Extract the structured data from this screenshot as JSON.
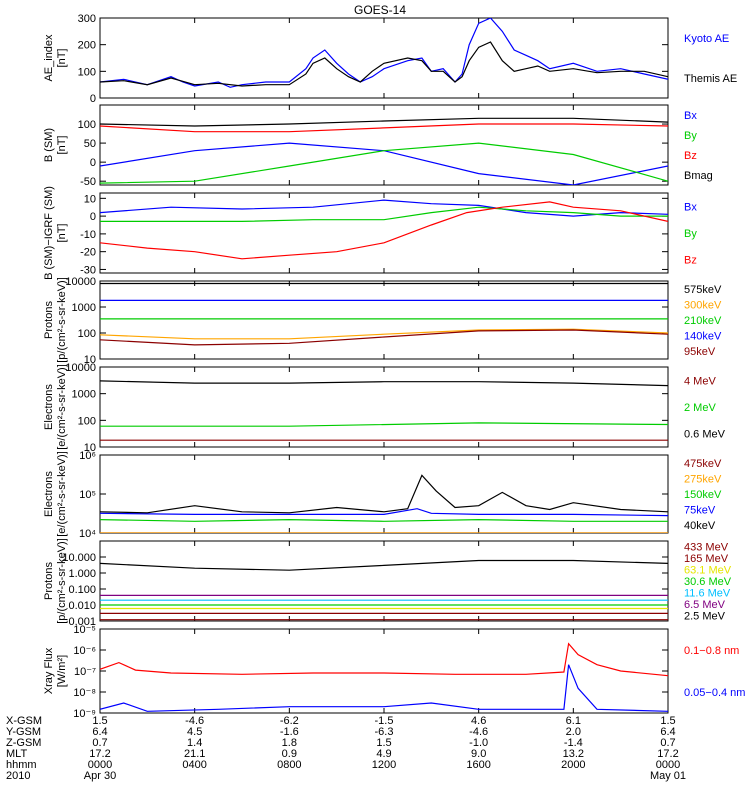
{
  "title": "GOES-14",
  "colors": {
    "blue": "#0000ff",
    "black": "#000000",
    "red": "#ff0000",
    "green": "#00cc00",
    "darkred": "#8b0000",
    "orange": "#ffa500",
    "yellow": "#e6e600",
    "cyan": "#00bfff",
    "purple": "#800080",
    "bg": "#ffffff"
  },
  "chart_data": [
    {
      "type": "line",
      "id": "ae",
      "ylabel": [
        "AE_index",
        "[nT]"
      ],
      "yscale": "linear",
      "ylim": [
        0,
        300
      ],
      "ticks": [
        0,
        100,
        200,
        300
      ],
      "tick_labels": [
        "0",
        "100",
        "200",
        "300"
      ],
      "series": [
        {
          "name": "Kyoto AE",
          "color": "blue",
          "x": [
            0,
            1,
            2,
            3,
            3.5,
            4,
            5,
            5.5,
            6,
            7,
            8,
            8.7,
            9,
            9.5,
            10,
            10.5,
            11,
            11.5,
            12,
            13,
            13.6,
            14,
            14.5,
            15,
            15.3,
            15.6,
            16,
            16.5,
            17,
            17.5,
            18,
            18.5,
            19,
            20,
            21,
            22,
            23,
            24
          ],
          "y": [
            60,
            70,
            50,
            80,
            60,
            45,
            60,
            40,
            50,
            60,
            60,
            110,
            150,
            180,
            130,
            90,
            60,
            80,
            110,
            140,
            150,
            100,
            110,
            60,
            90,
            200,
            280,
            310,
            250,
            180,
            160,
            140,
            110,
            130,
            100,
            110,
            90,
            70
          ]
        },
        {
          "name": "Themis AE",
          "color": "black",
          "x": [
            0,
            1,
            2,
            3,
            4,
            5,
            6,
            7,
            8,
            8.7,
            9,
            9.5,
            10,
            10.5,
            11,
            11.5,
            12,
            13,
            13.6,
            14,
            14.5,
            15,
            15.3,
            15.6,
            16,
            16.5,
            17,
            17.5,
            18,
            18.5,
            19,
            20,
            21,
            22,
            23,
            24
          ],
          "y": [
            60,
            65,
            50,
            75,
            50,
            55,
            45,
            50,
            50,
            90,
            130,
            150,
            110,
            80,
            60,
            100,
            130,
            150,
            140,
            100,
            100,
            60,
            80,
            140,
            190,
            210,
            140,
            100,
            110,
            120,
            100,
            110,
            95,
            100,
            100,
            80
          ]
        }
      ]
    },
    {
      "type": "line",
      "id": "bsm",
      "ylabel": [
        "B (SM)",
        "[nT]"
      ],
      "yscale": "linear",
      "ylim": [
        -60,
        150
      ],
      "ticks": [
        -50,
        0,
        50,
        100
      ],
      "tick_labels": [
        "-50",
        "0",
        "50",
        "100"
      ],
      "series": [
        {
          "name": "Bx",
          "color": "blue",
          "x": [
            0,
            4,
            8,
            12,
            16,
            20,
            24
          ],
          "y": [
            -10,
            30,
            50,
            30,
            -30,
            -60,
            -10
          ]
        },
        {
          "name": "By",
          "color": "green",
          "x": [
            0,
            4,
            8,
            12,
            16,
            20,
            24
          ],
          "y": [
            -55,
            -50,
            -10,
            30,
            50,
            20,
            -50
          ]
        },
        {
          "name": "Bz",
          "color": "red",
          "x": [
            0,
            4,
            8,
            12,
            16,
            20,
            24
          ],
          "y": [
            95,
            80,
            80,
            90,
            100,
            100,
            95
          ]
        },
        {
          "name": "Bmag",
          "color": "black",
          "x": [
            0,
            4,
            8,
            12,
            16,
            20,
            24
          ],
          "y": [
            100,
            95,
            100,
            108,
            115,
            115,
            105
          ]
        }
      ]
    },
    {
      "type": "line",
      "id": "bigrf",
      "ylabel": [
        "B (SM)−IGRF (SM)",
        "[nT]"
      ],
      "yscale": "linear",
      "ylim": [
        -32,
        13
      ],
      "ticks": [
        -30,
        -20,
        -10,
        0,
        10
      ],
      "tick_labels": [
        "-30",
        "-20",
        "-10",
        "0",
        "10"
      ],
      "series": [
        {
          "name": "Bx",
          "color": "blue",
          "x": [
            0,
            3,
            6,
            9,
            12,
            14,
            16,
            18,
            20,
            22,
            24
          ],
          "y": [
            2,
            5,
            4,
            5,
            9,
            7,
            6,
            2,
            0,
            2,
            1
          ]
        },
        {
          "name": "By",
          "color": "green",
          "x": [
            0,
            3,
            6,
            9,
            12,
            14,
            16,
            18,
            20,
            22,
            24
          ],
          "y": [
            -3,
            -3,
            -3,
            -2,
            -2,
            2,
            5,
            3,
            2,
            0,
            0
          ]
        },
        {
          "name": "Bz",
          "color": "red",
          "x": [
            0,
            2,
            4,
            6,
            8,
            10,
            12,
            14,
            15.5,
            17,
            19,
            20,
            22,
            24
          ],
          "y": [
            -15,
            -18,
            -20,
            -24,
            -22,
            -20,
            -15,
            -5,
            2,
            5,
            8,
            5,
            3,
            -3
          ]
        }
      ]
    },
    {
      "type": "line",
      "id": "protons1",
      "ylabel": [
        "Protons",
        "[p/(cm²-s-sr-keV)]"
      ],
      "yscale": "log",
      "ylim": [
        10,
        10000
      ],
      "ticks": [
        10,
        100,
        1000,
        10000
      ],
      "tick_labels": [
        "10",
        "100",
        "1000",
        "10000"
      ],
      "series": [
        {
          "name": "575keV",
          "color": "black",
          "x": [
            0,
            24
          ],
          "y": [
            8000,
            8000
          ]
        },
        {
          "name": "300keV",
          "color": "orange",
          "x": [
            0,
            4,
            8,
            12,
            16,
            20,
            24
          ],
          "y": [
            85,
            60,
            60,
            90,
            130,
            140,
            100
          ]
        },
        {
          "name": "210keV",
          "color": "green",
          "x": [
            0,
            24
          ],
          "y": [
            350,
            350
          ]
        },
        {
          "name": "140keV",
          "color": "blue",
          "x": [
            0,
            24
          ],
          "y": [
            1800,
            1800
          ]
        },
        {
          "name": "95keV",
          "color": "darkred",
          "x": [
            0,
            4,
            8,
            12,
            16,
            20,
            24
          ],
          "y": [
            55,
            35,
            40,
            70,
            120,
            130,
            90
          ]
        }
      ]
    },
    {
      "type": "line",
      "id": "electrons1",
      "ylabel": [
        "Electrons",
        "[e/(cm²-s-sr-keV)]"
      ],
      "yscale": "log",
      "ylim": [
        10,
        10000
      ],
      "ticks": [
        10,
        100,
        1000,
        10000
      ],
      "tick_labels": [
        "10",
        "100",
        "1000",
        "10000"
      ],
      "series": [
        {
          "name": "4 MeV",
          "color": "darkred",
          "x": [
            0,
            24
          ],
          "y": [
            18,
            18
          ]
        },
        {
          "name": "2 MeV",
          "color": "green",
          "x": [
            0,
            8,
            16,
            24
          ],
          "y": [
            60,
            60,
            80,
            70
          ]
        },
        {
          "name": "0.6 MeV",
          "color": "black",
          "x": [
            0,
            4,
            8,
            12,
            16,
            20,
            24
          ],
          "y": [
            3000,
            2500,
            2500,
            2800,
            2800,
            2500,
            2000
          ]
        }
      ]
    },
    {
      "type": "line",
      "id": "electrons2",
      "ylabel": [
        "Electrons",
        "[e/(cm²-s-sr-keV)]"
      ],
      "yscale": "log",
      "ylim": [
        10000,
        1000000
      ],
      "ticks": [
        10000,
        100000,
        1000000
      ],
      "tick_labels": [
        "10⁴",
        "10⁵",
        "10⁶"
      ],
      "series": [
        {
          "name": "475keV",
          "color": "darkred",
          "x": [
            0,
            24
          ],
          "y": [
            8000,
            8000
          ]
        },
        {
          "name": "275keV",
          "color": "orange",
          "x": [
            0,
            24
          ],
          "y": [
            8000,
            8000
          ]
        },
        {
          "name": "150keV",
          "color": "green",
          "x": [
            0,
            4,
            8,
            12,
            16,
            20,
            24
          ],
          "y": [
            22000,
            20000,
            22000,
            20000,
            22000,
            20000,
            20000
          ]
        },
        {
          "name": "75keV",
          "color": "blue",
          "x": [
            0,
            4,
            8,
            12,
            13.4,
            14,
            16,
            20,
            24
          ],
          "y": [
            32000,
            30000,
            30000,
            30000,
            42000,
            32000,
            30000,
            30000,
            28000
          ]
        },
        {
          "name": "40keV",
          "color": "black",
          "x": [
            0,
            2,
            4,
            6,
            8,
            10,
            12,
            13,
            13.6,
            14.2,
            15,
            16,
            17,
            18,
            19,
            20,
            22,
            24
          ],
          "y": [
            35000,
            33000,
            50000,
            35000,
            33000,
            45000,
            35000,
            42000,
            300000,
            120000,
            45000,
            50000,
            110000,
            50000,
            40000,
            60000,
            40000,
            35000
          ]
        }
      ]
    },
    {
      "type": "line",
      "id": "protons2",
      "ylabel": [
        "Protons",
        "[p/(cm²-s-sr-keV)]"
      ],
      "yscale": "log",
      "ylim": [
        0.001,
        100
      ],
      "ticks": [
        0.001,
        0.01,
        0.1,
        1,
        10
      ],
      "tick_labels": [
        "0.001",
        "0.010",
        "0.100",
        "1.000",
        "10.000"
      ],
      "series": [
        {
          "name": "433 MeV",
          "color": "darkred",
          "x": [
            0,
            24
          ],
          "y": [
            0.0012,
            0.0012
          ]
        },
        {
          "name": "165 MeV",
          "color": "darkred",
          "x": [
            0,
            24
          ],
          "y": [
            0.003,
            0.003
          ]
        },
        {
          "name": "63.1 MeV",
          "color": "yellow",
          "x": [
            0,
            24
          ],
          "y": [
            0.006,
            0.006
          ]
        },
        {
          "name": "30.6 MeV",
          "color": "green",
          "x": [
            0,
            24
          ],
          "y": [
            0.01,
            0.01
          ]
        },
        {
          "name": "11.6 MeV",
          "color": "cyan",
          "x": [
            0,
            24
          ],
          "y": [
            0.02,
            0.02
          ]
        },
        {
          "name": "6.5 MeV",
          "color": "purple",
          "x": [
            0,
            24
          ],
          "y": [
            0.04,
            0.04
          ]
        },
        {
          "name": "2.5 MeV",
          "color": "black",
          "x": [
            0,
            4,
            8,
            12,
            16,
            20,
            24
          ],
          "y": [
            4,
            2,
            1.5,
            3,
            6,
            6,
            4
          ]
        }
      ]
    },
    {
      "type": "line",
      "id": "xray",
      "ylabel": [
        "Xray Flux",
        "[W/m²]"
      ],
      "yscale": "log",
      "ylim": [
        1e-09,
        1e-05
      ],
      "ticks": [
        1e-09,
        1e-08,
        1e-07,
        1e-06,
        1e-05
      ],
      "tick_labels": [
        "10⁻⁹",
        "10⁻⁸",
        "10⁻⁷",
        "10⁻⁶",
        "10⁻⁵"
      ],
      "series": [
        {
          "name": "0.1−0.8 nm",
          "color": "red",
          "x": [
            0,
            0.8,
            1.5,
            3,
            6,
            9,
            12,
            15,
            18,
            19.6,
            19.8,
            20.2,
            21,
            22,
            24
          ],
          "y": [
            1.2e-07,
            2.5e-07,
            1.1e-07,
            8e-08,
            7e-08,
            8e-08,
            8e-08,
            7e-08,
            7e-08,
            9e-08,
            2e-06,
            6e-07,
            2e-07,
            1e-07,
            6e-08
          ]
        },
        {
          "name": "0.05−0.4 nm",
          "color": "blue",
          "x": [
            0,
            1,
            2,
            5,
            8,
            12,
            14,
            16,
            18,
            19.6,
            19.8,
            20.2,
            21,
            24
          ],
          "y": [
            1.5e-09,
            3e-09,
            1.2e-09,
            1.5e-09,
            2e-09,
            2e-09,
            3e-09,
            1.5e-09,
            1.5e-09,
            1.5e-09,
            2e-07,
            1.5e-08,
            1.5e-09,
            1.2e-09
          ]
        }
      ]
    }
  ],
  "x_axis": {
    "xlim": [
      0,
      24
    ],
    "tick_hours": [
      0,
      4,
      8,
      12,
      16,
      20,
      24
    ],
    "rows": [
      {
        "label": "X-GSM",
        "values": [
          "1.5",
          "-4.6",
          "-6.2",
          "-1.5",
          "4.6",
          "6.1",
          "1.5"
        ]
      },
      {
        "label": "Y-GSM",
        "values": [
          "6.4",
          "4.5",
          "-1.6",
          "-6.3",
          "-4.6",
          "2.0",
          "6.4"
        ]
      },
      {
        "label": "Z-GSM",
        "values": [
          "0.7",
          "1.4",
          "1.8",
          "1.5",
          "-1.0",
          "-1.4",
          "0.7"
        ]
      },
      {
        "label": "MLT",
        "values": [
          "17.2",
          "21.1",
          "0.9",
          "4.9",
          "9.0",
          "13.2",
          "17.2"
        ]
      },
      {
        "label": "hhmm",
        "values": [
          "0000",
          "0400",
          "0800",
          "1200",
          "1600",
          "2000",
          "0000"
        ]
      },
      {
        "label": "2010",
        "values": [
          "Apr 30",
          "",
          "",
          "",
          "",
          "",
          "May 01"
        ]
      }
    ]
  }
}
